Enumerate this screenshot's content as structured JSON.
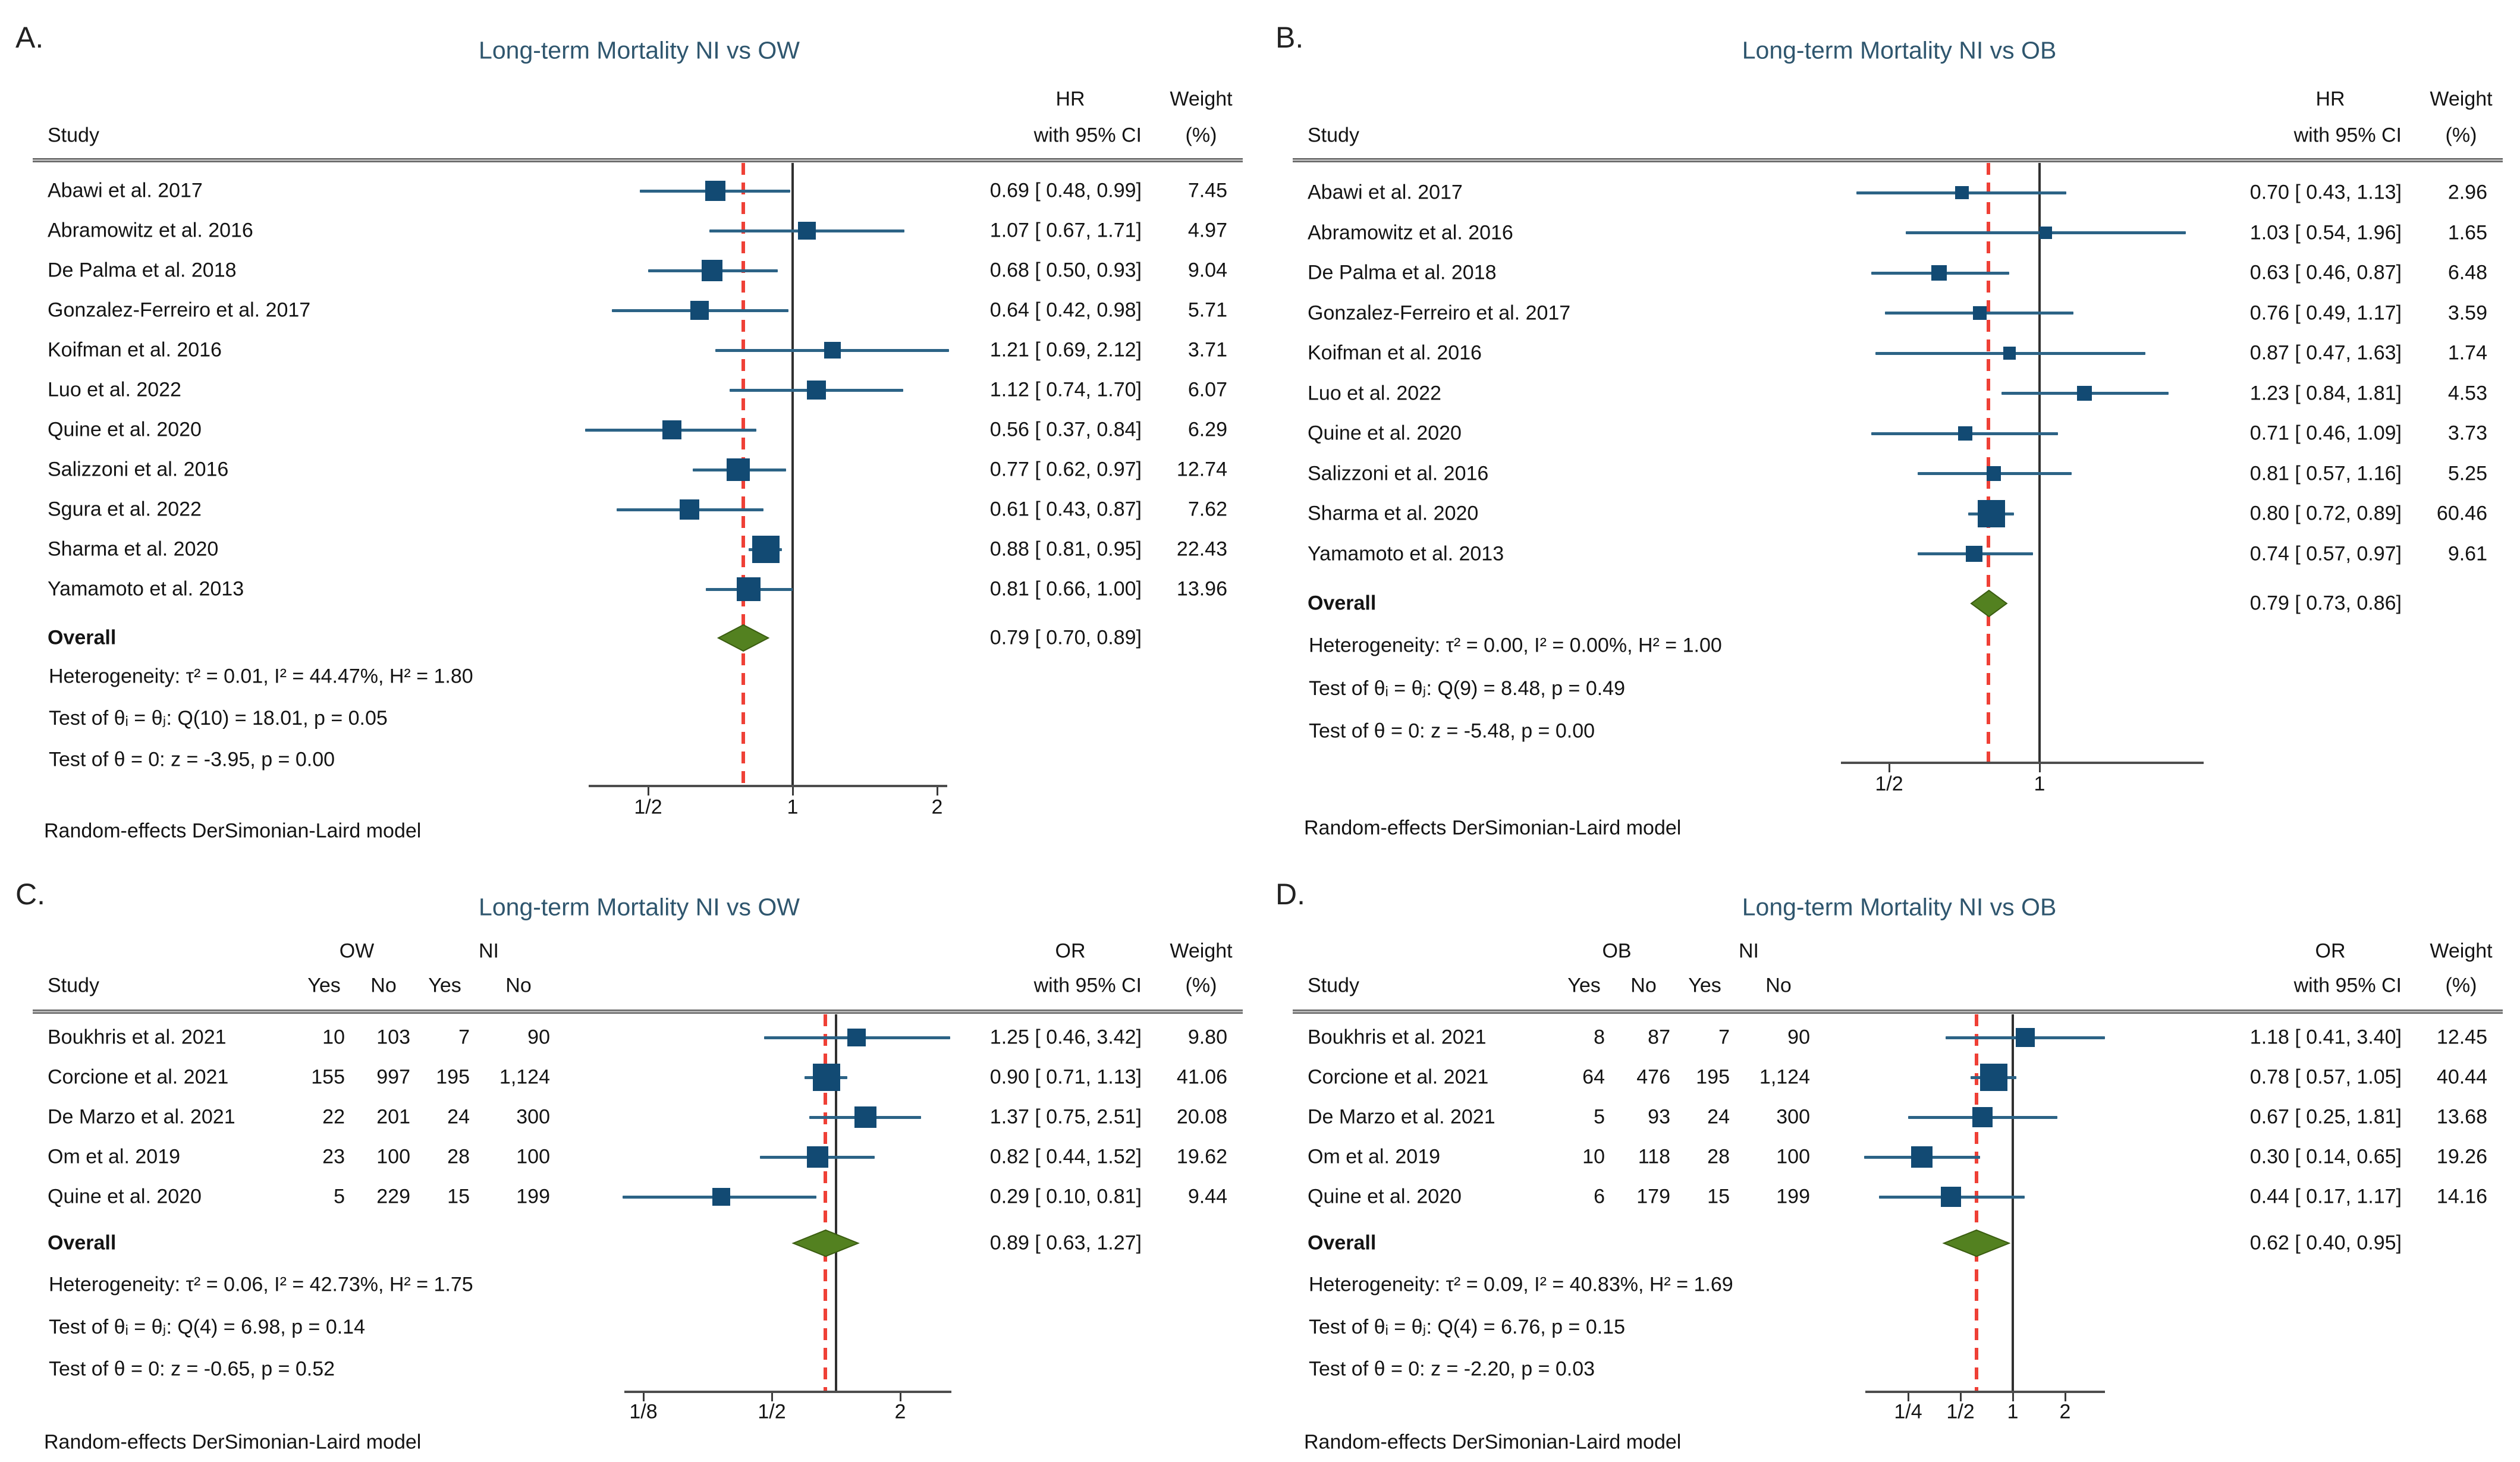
{
  "figure": {
    "background": "#ffffff"
  },
  "colors": {
    "title": "#2f566e",
    "marker": "#124a73",
    "ci_line": "#2c6386",
    "diamond_fill": "#538120",
    "diamond_stroke": "#3a5c10",
    "pooled_line": "#ef4036",
    "ref_line": "#303030",
    "axis": "#4d4d4d",
    "text": "#141414"
  },
  "chart_data": {
    "type": "forest",
    "scale": "log2",
    "panels": [
      {
        "id": "A",
        "letter": "A.",
        "title": "Long-term Mortality NI vs OW",
        "study_header": "Study",
        "effect_measure": "HR",
        "ci_header": "with 95% CI",
        "weight_header_line1": "Weight",
        "weight_header_line2": "(%)",
        "studies": [
          {
            "name": "Abawi et al. 2017",
            "est": 0.69,
            "lo": 0.48,
            "hi": 0.99,
            "weight": 7.45,
            "ci_text": "0.69 [ 0.48, 0.99]",
            "weight_text": "7.45"
          },
          {
            "name": "Abramowitz et al. 2016",
            "est": 1.07,
            "lo": 0.67,
            "hi": 1.71,
            "weight": 4.97,
            "ci_text": "1.07 [ 0.67, 1.71]",
            "weight_text": "4.97"
          },
          {
            "name": "De Palma et al. 2018",
            "est": 0.68,
            "lo": 0.5,
            "hi": 0.93,
            "weight": 9.04,
            "ci_text": "0.68 [ 0.50, 0.93]",
            "weight_text": "9.04"
          },
          {
            "name": "Gonzalez-Ferreiro et al. 2017",
            "est": 0.64,
            "lo": 0.42,
            "hi": 0.98,
            "weight": 5.71,
            "ci_text": "0.64 [ 0.42, 0.98]",
            "weight_text": "5.71"
          },
          {
            "name": "Koifman et al. 2016",
            "est": 1.21,
            "lo": 0.69,
            "hi": 2.12,
            "weight": 3.71,
            "ci_text": "1.21 [ 0.69, 2.12]",
            "weight_text": "3.71"
          },
          {
            "name": "Luo et al. 2022",
            "est": 1.12,
            "lo": 0.74,
            "hi": 1.7,
            "weight": 6.07,
            "ci_text": "1.12 [ 0.74, 1.70]",
            "weight_text": "6.07"
          },
          {
            "name": "Quine et al. 2020",
            "est": 0.56,
            "lo": 0.37,
            "hi": 0.84,
            "weight": 6.29,
            "ci_text": "0.56 [ 0.37, 0.84]",
            "weight_text": "6.29"
          },
          {
            "name": "Salizzoni et al. 2016",
            "est": 0.77,
            "lo": 0.62,
            "hi": 0.97,
            "weight": 12.74,
            "ci_text": "0.77 [ 0.62, 0.97]",
            "weight_text": "12.74"
          },
          {
            "name": "Sgura et al. 2022",
            "est": 0.61,
            "lo": 0.43,
            "hi": 0.87,
            "weight": 7.62,
            "ci_text": "0.61 [ 0.43, 0.87]",
            "weight_text": "7.62"
          },
          {
            "name": "Sharma et al. 2020",
            "est": 0.88,
            "lo": 0.81,
            "hi": 0.95,
            "weight": 22.43,
            "ci_text": "0.88 [ 0.81, 0.95]",
            "weight_text": "22.43"
          },
          {
            "name": "Yamamoto et al. 2013",
            "est": 0.81,
            "lo": 0.66,
            "hi": 1.0,
            "weight": 13.96,
            "ci_text": "0.81 [ 0.66, 1.00]",
            "weight_text": "13.96"
          }
        ],
        "overall": {
          "label": "Overall",
          "est": 0.79,
          "lo": 0.7,
          "hi": 0.89,
          "ci_text": "0.79 [ 0.70, 0.89]"
        },
        "heterogeneity": "Heterogeneity: τ² = 0.01, I² = 44.47%, H² = 1.80",
        "test_theta_ij": "Test of θᵢ = θⱼ: Q(10) = 18.01, p = 0.05",
        "test_theta_zero": "Test of θ = 0: z = -3.95, p = 0.00",
        "axis_ticks": [
          {
            "label": "1/2",
            "value": 0.5
          },
          {
            "label": "1",
            "value": 1
          },
          {
            "label": "2",
            "value": 2
          }
        ],
        "footnote": "Random-effects DerSimonian-Laird model"
      },
      {
        "id": "B",
        "letter": "B.",
        "title": "Long-term Mortality NI vs OB",
        "study_header": "Study",
        "effect_measure": "HR",
        "ci_header": "with 95% CI",
        "weight_header_line1": "Weight",
        "weight_header_line2": "(%)",
        "studies": [
          {
            "name": "Abawi et al. 2017",
            "est": 0.7,
            "lo": 0.43,
            "hi": 1.13,
            "weight": 2.96,
            "ci_text": "0.70 [ 0.43, 1.13]",
            "weight_text": "2.96"
          },
          {
            "name": "Abramowitz et al. 2016",
            "est": 1.03,
            "lo": 0.54,
            "hi": 1.96,
            "weight": 1.65,
            "ci_text": "1.03 [ 0.54, 1.96]",
            "weight_text": "1.65"
          },
          {
            "name": "De Palma et al. 2018",
            "est": 0.63,
            "lo": 0.46,
            "hi": 0.87,
            "weight": 6.48,
            "ci_text": "0.63 [ 0.46, 0.87]",
            "weight_text": "6.48"
          },
          {
            "name": "Gonzalez-Ferreiro et al. 2017",
            "est": 0.76,
            "lo": 0.49,
            "hi": 1.17,
            "weight": 3.59,
            "ci_text": "0.76 [ 0.49, 1.17]",
            "weight_text": "3.59"
          },
          {
            "name": "Koifman et al. 2016",
            "est": 0.87,
            "lo": 0.47,
            "hi": 1.63,
            "weight": 1.74,
            "ci_text": "0.87 [ 0.47, 1.63]",
            "weight_text": "1.74"
          },
          {
            "name": "Luo et al. 2022",
            "est": 1.23,
            "lo": 0.84,
            "hi": 1.81,
            "weight": 4.53,
            "ci_text": "1.23 [ 0.84, 1.81]",
            "weight_text": "4.53"
          },
          {
            "name": "Quine et al. 2020",
            "est": 0.71,
            "lo": 0.46,
            "hi": 1.09,
            "weight": 3.73,
            "ci_text": "0.71 [ 0.46, 1.09]",
            "weight_text": "3.73"
          },
          {
            "name": "Salizzoni et al. 2016",
            "est": 0.81,
            "lo": 0.57,
            "hi": 1.16,
            "weight": 5.25,
            "ci_text": "0.81 [ 0.57, 1.16]",
            "weight_text": "5.25"
          },
          {
            "name": "Sharma et al. 2020",
            "est": 0.8,
            "lo": 0.72,
            "hi": 0.89,
            "weight": 60.46,
            "ci_text": "0.80 [ 0.72, 0.89]",
            "weight_text": "60.46"
          },
          {
            "name": "Yamamoto et al. 2013",
            "est": 0.74,
            "lo": 0.57,
            "hi": 0.97,
            "weight": 9.61,
            "ci_text": "0.74 [ 0.57, 0.97]",
            "weight_text": "9.61"
          }
        ],
        "overall": {
          "label": "Overall",
          "est": 0.79,
          "lo": 0.73,
          "hi": 0.86,
          "ci_text": "0.79 [ 0.73, 0.86]"
        },
        "heterogeneity": "Heterogeneity: τ² = 0.00, I² = 0.00%, H² = 1.00",
        "test_theta_ij": "Test of θᵢ = θⱼ: Q(9) = 8.48, p = 0.49",
        "test_theta_zero": "Test of θ = 0: z = -5.48, p = 0.00",
        "axis_ticks": [
          {
            "label": "1/2",
            "value": 0.5
          },
          {
            "label": "1",
            "value": 1
          }
        ],
        "footnote": "Random-effects DerSimonian-Laird model"
      },
      {
        "id": "C",
        "letter": "C.",
        "title": "Long-term Mortality NI vs OW",
        "study_header": "Study",
        "effect_measure": "OR",
        "ci_header": "with 95% CI",
        "weight_header_line1": "Weight",
        "weight_header_line2": "(%)",
        "groups": {
          "group1_label": "OW",
          "group2_label": "NI",
          "col_headers": [
            "Yes",
            "No",
            "Yes",
            "No"
          ]
        },
        "studies": [
          {
            "name": "Boukhris et al. 2021",
            "counts": [
              "10",
              "103",
              "7",
              "90"
            ],
            "est": 1.25,
            "lo": 0.46,
            "hi": 3.42,
            "weight": 9.8,
            "ci_text": "1.25 [ 0.46, 3.42]",
            "weight_text": "9.80"
          },
          {
            "name": "Corcione et al. 2021",
            "counts": [
              "155",
              "997",
              "195",
              "1,124"
            ],
            "est": 0.9,
            "lo": 0.71,
            "hi": 1.13,
            "weight": 41.06,
            "ci_text": "0.90 [ 0.71, 1.13]",
            "weight_text": "41.06"
          },
          {
            "name": "De Marzo et al. 2021",
            "counts": [
              "22",
              "201",
              "24",
              "300"
            ],
            "est": 1.37,
            "lo": 0.75,
            "hi": 2.51,
            "weight": 20.08,
            "ci_text": "1.37 [ 0.75, 2.51]",
            "weight_text": "20.08"
          },
          {
            "name": "Om et al. 2019",
            "counts": [
              "23",
              "100",
              "28",
              "100"
            ],
            "est": 0.82,
            "lo": 0.44,
            "hi": 1.52,
            "weight": 19.62,
            "ci_text": "0.82 [ 0.44, 1.52]",
            "weight_text": "19.62"
          },
          {
            "name": "Quine et al. 2020",
            "counts": [
              "5",
              "229",
              "15",
              "199"
            ],
            "est": 0.29,
            "lo": 0.1,
            "hi": 0.81,
            "weight": 9.44,
            "ci_text": "0.29 [ 0.10, 0.81]",
            "weight_text": "9.44"
          }
        ],
        "overall": {
          "label": "Overall",
          "est": 0.89,
          "lo": 0.63,
          "hi": 1.27,
          "ci_text": "0.89 [ 0.63, 1.27]"
        },
        "heterogeneity": "Heterogeneity: τ² = 0.06, I² = 42.73%, H² = 1.75",
        "test_theta_ij": "Test of θᵢ = θⱼ: Q(4) = 6.98, p = 0.14",
        "test_theta_zero": "Test of θ = 0: z = -0.65, p = 0.52",
        "axis_ticks": [
          {
            "label": "1/8",
            "value": 0.125
          },
          {
            "label": "1/2",
            "value": 0.5
          },
          {
            "label": "2",
            "value": 2
          }
        ],
        "footnote": "Random-effects DerSimonian-Laird model"
      },
      {
        "id": "D",
        "letter": "D.",
        "title": "Long-term Mortality NI vs OB",
        "study_header": "Study",
        "effect_measure": "OR",
        "ci_header": "with 95% CI",
        "weight_header_line1": "Weight",
        "weight_header_line2": "(%)",
        "groups": {
          "group1_label": "OB",
          "group2_label": "NI",
          "col_headers": [
            "Yes",
            "No",
            "Yes",
            "No"
          ]
        },
        "studies": [
          {
            "name": "Boukhris et al. 2021",
            "counts": [
              "8",
              "87",
              "7",
              "90"
            ],
            "est": 1.18,
            "lo": 0.41,
            "hi": 3.4,
            "weight": 12.45,
            "ci_text": "1.18 [ 0.41, 3.40]",
            "weight_text": "12.45"
          },
          {
            "name": "Corcione et al. 2021",
            "counts": [
              "64",
              "476",
              "195",
              "1,124"
            ],
            "est": 0.78,
            "lo": 0.57,
            "hi": 1.05,
            "weight": 40.44,
            "ci_text": "0.78 [ 0.57, 1.05]",
            "weight_text": "40.44"
          },
          {
            "name": "De Marzo et al. 2021",
            "counts": [
              "5",
              "93",
              "24",
              "300"
            ],
            "est": 0.67,
            "lo": 0.25,
            "hi": 1.81,
            "weight": 13.68,
            "ci_text": "0.67 [ 0.25, 1.81]",
            "weight_text": "13.68"
          },
          {
            "name": "Om et al. 2019",
            "counts": [
              "10",
              "118",
              "28",
              "100"
            ],
            "est": 0.3,
            "lo": 0.14,
            "hi": 0.65,
            "weight": 19.26,
            "ci_text": "0.30 [ 0.14, 0.65]",
            "weight_text": "19.26"
          },
          {
            "name": "Quine et al. 2020",
            "counts": [
              "6",
              "179",
              "15",
              "199"
            ],
            "est": 0.44,
            "lo": 0.17,
            "hi": 1.17,
            "weight": 14.16,
            "ci_text": "0.44 [ 0.17, 1.17]",
            "weight_text": "14.16"
          }
        ],
        "overall": {
          "label": "Overall",
          "est": 0.62,
          "lo": 0.4,
          "hi": 0.95,
          "ci_text": "0.62 [ 0.40, 0.95]"
        },
        "heterogeneity": "Heterogeneity: τ² = 0.09, I² = 40.83%, H² = 1.69",
        "test_theta_ij": "Test of θᵢ = θⱼ: Q(4) = 6.76, p = 0.15",
        "test_theta_zero": "Test of θ = 0: z = -2.20, p = 0.03",
        "axis_ticks": [
          {
            "label": "1/4",
            "value": 0.25
          },
          {
            "label": "1/2",
            "value": 0.5
          },
          {
            "label": "1",
            "value": 1
          },
          {
            "label": "2",
            "value": 2
          }
        ],
        "footnote": "Random-effects DerSimonian-Laird model"
      }
    ]
  }
}
